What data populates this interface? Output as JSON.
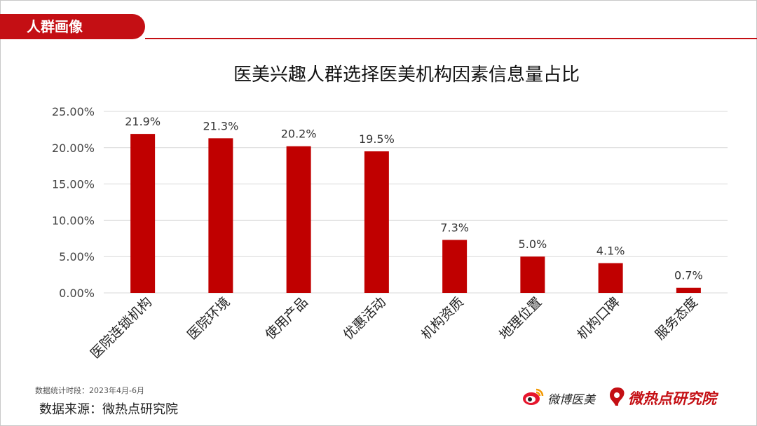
{
  "tag": {
    "label": "人群画像"
  },
  "colors": {
    "accent": "#c40f14",
    "bar": "#c00000",
    "grid": "#d9d9d9"
  },
  "chart_data": {
    "type": "bar",
    "title": "医美兴趣人群选择医美机构因素信息量占比",
    "categories": [
      "医院连锁机构",
      "医院环境",
      "使用产品",
      "优惠活动",
      "机构资质",
      "地理位置",
      "机构口碑",
      "服务态度"
    ],
    "values": [
      21.9,
      21.3,
      20.2,
      19.5,
      7.3,
      5.0,
      4.1,
      0.7
    ],
    "data_labels": [
      "21.9%",
      "21.3%",
      "20.2%",
      "19.5%",
      "7.3%",
      "5.0%",
      "4.1%",
      "0.7%"
    ],
    "yticks": [
      0,
      5,
      10,
      15,
      20,
      25
    ],
    "ytick_labels": [
      "0.00%",
      "5.00%",
      "10.00%",
      "15.00%",
      "20.00%",
      "25.00%"
    ],
    "ylim": [
      0,
      25
    ],
    "xlabel": "",
    "ylabel": "",
    "grid": true
  },
  "footer": {
    "note": "数据统计时段：2023年4月-6月",
    "source": "数据来源：微热点研究院"
  },
  "logos": {
    "weibo_medical": {
      "icon": "weibo-icon",
      "text": "微博医美"
    },
    "wrd_institute": {
      "icon": "wrd-logo-icon",
      "text": "微热点研究院"
    }
  }
}
